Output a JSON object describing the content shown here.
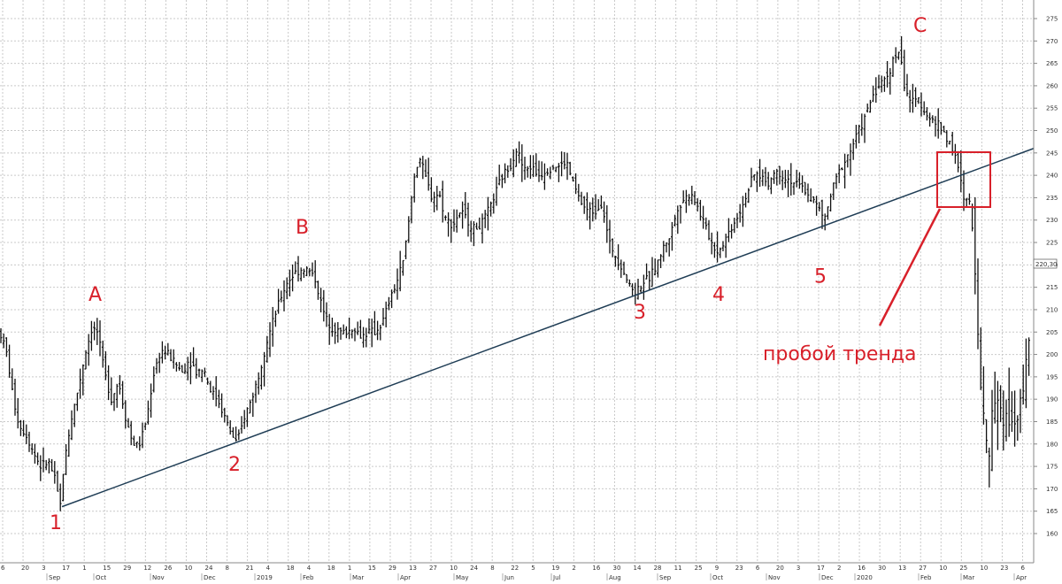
{
  "chart_data": {
    "type": "ohlc",
    "title": "",
    "xlabel": "",
    "ylabel": "",
    "ylim": [
      155,
      280
    ],
    "y_ticks": [
      160,
      165,
      170,
      175,
      180,
      185,
      190,
      195,
      200,
      205,
      210,
      215,
      220,
      225,
      230,
      235,
      240,
      245,
      250,
      255,
      260,
      265,
      270,
      275
    ],
    "last_price_label": "220,30",
    "grid": true,
    "x_day_labels": [
      "6",
      "20",
      "3",
      "17",
      "1",
      "15",
      "29",
      "12",
      "26",
      "10",
      "24",
      "8",
      "21",
      "4",
      "18",
      "4",
      "18",
      "1",
      "15",
      "29",
      "13",
      "27",
      "10",
      "24",
      "8",
      "22",
      "5",
      "19",
      "2",
      "16",
      "30",
      "14",
      "28",
      "11",
      "25",
      "9",
      "23",
      "6",
      "20",
      "3",
      "17",
      "2",
      "16",
      "30",
      "13",
      "27",
      "10",
      "25",
      "10",
      "23",
      "6"
    ],
    "x_month_labels": [
      "Sep",
      "Oct",
      "Nov",
      "Dec",
      "2019",
      "Feb",
      "Mar",
      "Apr",
      "May",
      "Jun",
      "Jul",
      "Aug",
      "Sep",
      "Oct",
      "Nov",
      "Dec",
      "2020",
      "Feb",
      "Mar",
      "Apr"
    ],
    "price_path": [
      [
        0,
        205
      ],
      [
        8,
        200
      ],
      [
        15,
        190
      ],
      [
        22,
        184
      ],
      [
        30,
        182
      ],
      [
        38,
        178
      ],
      [
        46,
        175
      ],
      [
        55,
        176
      ],
      [
        62,
        172
      ],
      [
        68,
        166
      ],
      [
        72,
        175
      ],
      [
        80,
        185
      ],
      [
        88,
        192
      ],
      [
        96,
        200
      ],
      [
        104,
        206
      ],
      [
        110,
        205
      ],
      [
        118,
        196
      ],
      [
        126,
        190
      ],
      [
        134,
        194
      ],
      [
        142,
        186
      ],
      [
        150,
        180
      ],
      [
        158,
        180
      ],
      [
        166,
        186
      ],
      [
        174,
        196
      ],
      [
        182,
        201
      ],
      [
        190,
        200
      ],
      [
        198,
        198
      ],
      [
        206,
        196
      ],
      [
        214,
        199
      ],
      [
        222,
        196
      ],
      [
        230,
        197
      ],
      [
        238,
        192
      ],
      [
        246,
        190
      ],
      [
        254,
        186
      ],
      [
        262,
        182
      ],
      [
        268,
        180
      ],
      [
        276,
        186
      ],
      [
        284,
        190
      ],
      [
        292,
        195
      ],
      [
        300,
        202
      ],
      [
        308,
        207
      ],
      [
        316,
        212
      ],
      [
        324,
        216
      ],
      [
        332,
        218
      ],
      [
        340,
        219
      ],
      [
        348,
        219
      ],
      [
        356,
        217
      ],
      [
        362,
        212
      ],
      [
        368,
        208
      ],
      [
        376,
        206
      ],
      [
        384,
        205
      ],
      [
        392,
        205
      ],
      [
        400,
        206
      ],
      [
        408,
        204
      ],
      [
        416,
        205
      ],
      [
        424,
        205
      ],
      [
        432,
        207
      ],
      [
        440,
        212
      ],
      [
        448,
        216
      ],
      [
        456,
        221
      ],
      [
        462,
        230
      ],
      [
        468,
        240
      ],
      [
        474,
        244
      ],
      [
        480,
        240
      ],
      [
        488,
        235
      ],
      [
        496,
        236
      ],
      [
        504,
        230
      ],
      [
        512,
        229
      ],
      [
        520,
        232
      ],
      [
        528,
        230
      ],
      [
        536,
        228
      ],
      [
        544,
        229
      ],
      [
        552,
        232
      ],
      [
        560,
        236
      ],
      [
        568,
        240
      ],
      [
        576,
        242
      ],
      [
        584,
        246
      ],
      [
        592,
        241
      ],
      [
        600,
        242
      ],
      [
        608,
        240
      ],
      [
        616,
        241
      ],
      [
        624,
        242
      ],
      [
        632,
        242
      ],
      [
        640,
        243
      ],
      [
        648,
        238
      ],
      [
        656,
        234
      ],
      [
        664,
        232
      ],
      [
        672,
        232
      ],
      [
        680,
        234
      ],
      [
        688,
        225
      ],
      [
        696,
        222
      ],
      [
        704,
        219
      ],
      [
        712,
        215
      ],
      [
        718,
        214
      ],
      [
        726,
        216
      ],
      [
        734,
        217
      ],
      [
        742,
        220
      ],
      [
        750,
        224
      ],
      [
        758,
        227
      ],
      [
        766,
        233
      ],
      [
        774,
        235
      ],
      [
        782,
        236
      ],
      [
        790,
        232
      ],
      [
        798,
        228
      ],
      [
        806,
        224
      ],
      [
        812,
        223
      ],
      [
        820,
        226
      ],
      [
        828,
        229
      ],
      [
        836,
        232
      ],
      [
        844,
        236
      ],
      [
        852,
        240
      ],
      [
        860,
        240
      ],
      [
        868,
        238
      ],
      [
        876,
        241
      ],
      [
        884,
        240
      ],
      [
        892,
        239
      ],
      [
        900,
        238
      ],
      [
        908,
        237
      ],
      [
        916,
        235
      ],
      [
        924,
        233
      ],
      [
        932,
        230
      ],
      [
        938,
        235
      ],
      [
        946,
        240
      ],
      [
        954,
        243
      ],
      [
        962,
        246
      ],
      [
        970,
        250
      ],
      [
        978,
        253
      ],
      [
        986,
        258
      ],
      [
        994,
        260
      ],
      [
        1002,
        262
      ],
      [
        1010,
        266
      ],
      [
        1016,
        268
      ],
      [
        1022,
        260
      ],
      [
        1030,
        256
      ],
      [
        1038,
        257
      ],
      [
        1046,
        254
      ],
      [
        1054,
        252
      ],
      [
        1062,
        251
      ],
      [
        1068,
        249
      ],
      [
        1074,
        247
      ],
      [
        1080,
        244
      ],
      [
        1086,
        238
      ],
      [
        1090,
        233
      ],
      [
        1094,
        236
      ],
      [
        1098,
        230
      ],
      [
        1102,
        218
      ],
      [
        1106,
        200
      ],
      [
        1110,
        188
      ],
      [
        1114,
        182
      ],
      [
        1118,
        176
      ],
      [
        1122,
        189
      ],
      [
        1128,
        192
      ],
      [
        1134,
        186
      ],
      [
        1140,
        187
      ],
      [
        1146,
        182
      ],
      [
        1152,
        190
      ],
      [
        1158,
        195
      ],
      [
        1164,
        203
      ]
    ],
    "trendline": [
      [
        70,
        166
      ],
      [
        1168,
        246
      ]
    ],
    "annotations": [
      {
        "label": "1",
        "x": 63,
        "y": 161
      },
      {
        "label": "A",
        "x": 107,
        "y": 212
      },
      {
        "label": "2",
        "x": 265,
        "y": 174
      },
      {
        "label": "B",
        "x": 341,
        "y": 227
      },
      {
        "label": "3",
        "x": 723,
        "y": 208
      },
      {
        "label": "4",
        "x": 812,
        "y": 212
      },
      {
        "label": "5",
        "x": 927,
        "y": 216
      },
      {
        "label": "C",
        "x": 1039,
        "y": 272
      }
    ],
    "callout": {
      "text": "пробой тренда"
    },
    "colors": {
      "annotation": "#d8202a",
      "trendline": "#1f3d55",
      "bars": "#111111",
      "grid": "#c9c9c9"
    }
  }
}
